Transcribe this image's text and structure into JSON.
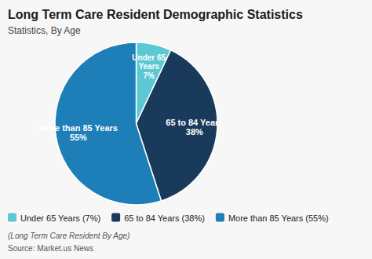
{
  "chart_data": {
    "type": "pie",
    "title": "Long Term Care Resident Demographic Statistics",
    "subtitle": "Statistics, By Age",
    "categories": [
      "Under 65 Years (7%)",
      "65 to 84 Years (38%)",
      "More than 85 Years (55%)"
    ],
    "values": [
      7,
      38,
      55
    ],
    "value_labels": [
      "Under 65\nYears\n7%",
      "65 to 84 Years\n38%",
      "More than 85 Years\n55%"
    ],
    "data_labels": true,
    "colors": [
      "#5bc8d4",
      "#1a3a5c",
      "#1e7eb8"
    ],
    "legend": "bottom",
    "annotations": [
      "(Long Term Care Resident By Age)",
      "Source: Market.us News"
    ]
  }
}
